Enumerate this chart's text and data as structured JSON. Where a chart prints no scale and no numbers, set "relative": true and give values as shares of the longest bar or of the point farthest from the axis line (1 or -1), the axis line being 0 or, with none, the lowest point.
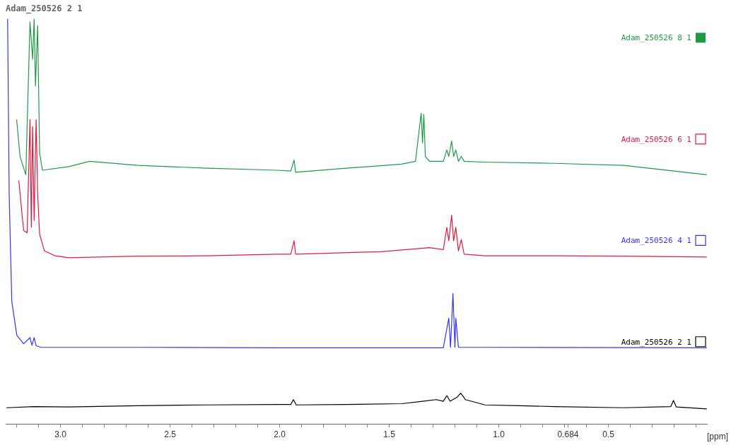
{
  "chart_data": {
    "type": "line",
    "title": "Adam_250526 2 1",
    "xlabel": "[ppm]",
    "relative": true,
    "grid": false,
    "legend": "right",
    "marker": "none",
    "line_style": "solid",
    "xlim": [
      3.25,
      0.05
    ],
    "xticks": [
      {
        "value": 3.2,
        "label": null
      },
      {
        "value": 3.1,
        "label": null
      },
      {
        "value": 3,
        "label": "3.0"
      },
      {
        "value": 2.9,
        "label": null
      },
      {
        "value": 2.8,
        "label": null
      },
      {
        "value": 2.7,
        "label": null
      },
      {
        "value": 2.6,
        "label": null
      },
      {
        "value": 2.5,
        "label": "2.5"
      },
      {
        "value": 2.4,
        "label": null
      },
      {
        "value": 2.3,
        "label": null
      },
      {
        "value": 2.2,
        "label": null
      },
      {
        "value": 2.1,
        "label": null
      },
      {
        "value": 2,
        "label": "2.0"
      },
      {
        "value": 1.9,
        "label": null
      },
      {
        "value": 1.8,
        "label": null
      },
      {
        "value": 1.7,
        "label": null
      },
      {
        "value": 1.6,
        "label": null
      },
      {
        "value": 1.5,
        "label": "1.5"
      },
      {
        "value": 1.4,
        "label": null
      },
      {
        "value": 1.3,
        "label": null
      },
      {
        "value": 1.2,
        "label": null
      },
      {
        "value": 1.1,
        "label": null
      },
      {
        "value": 1,
        "label": "1.0"
      },
      {
        "value": 0.9,
        "label": null
      },
      {
        "value": 0.8,
        "label": null
      },
      {
        "value": 0.7,
        "label": null
      },
      {
        "value": 0.684,
        "label": "0.684"
      },
      {
        "value": 0.6,
        "label": null
      },
      {
        "value": 0.5,
        "label": "0.5"
      },
      {
        "value": 0.4,
        "label": null
      },
      {
        "value": 0.3,
        "label": null
      },
      {
        "value": 0.2,
        "label": null
      },
      {
        "value": 0.1,
        "label": null
      }
    ],
    "series": [
      {
        "name": "Adam_250526 8 1",
        "color": "#1e9a45",
        "x": [
          3.2,
          3.184,
          3.158,
          3.139,
          3.127,
          3.12,
          3.114,
          3.104,
          3.095,
          3.082,
          2.962,
          2.867,
          2.646,
          2.329,
          2.013,
          1.949,
          1.934,
          1.927,
          1.696,
          1.443,
          1.38,
          1.354,
          1.348,
          1.342,
          1.335,
          1.316,
          1.253,
          1.237,
          1.228,
          1.215,
          1.206,
          1.196,
          1.184,
          1.171,
          1.158,
          1.063,
          0.747,
          0.43,
          0.051
        ],
        "values": [
          0.751,
          0.659,
          0.615,
          0.992,
          0.9,
          1.0,
          0.834,
          0.983,
          0.668,
          0.626,
          0.635,
          0.648,
          0.638,
          0.631,
          0.626,
          0.624,
          0.651,
          0.621,
          0.631,
          0.641,
          0.648,
          0.767,
          0.693,
          0.764,
          0.66,
          0.648,
          0.648,
          0.676,
          0.66,
          0.698,
          0.66,
          0.676,
          0.648,
          0.66,
          0.648,
          0.646,
          0.643,
          0.638,
          0.615
        ]
      },
      {
        "name": "Adam_250526 6 1",
        "color": "#e8173c",
        "x": [
          3.19,
          3.168,
          3.152,
          3.139,
          3.133,
          3.127,
          3.12,
          3.111,
          3.104,
          3.095,
          3.073,
          3.025,
          2.962,
          2.646,
          2.329,
          2.013,
          1.949,
          1.934,
          1.927,
          1.538,
          1.316,
          1.253,
          1.237,
          1.228,
          1.215,
          1.206,
          1.196,
          1.184,
          1.171,
          1.158,
          1.063,
          0.747,
          0.43,
          0.051
        ],
        "values": [
          0.601,
          0.477,
          0.472,
          0.751,
          0.485,
          0.734,
          0.502,
          0.751,
          0.568,
          0.468,
          0.427,
          0.415,
          0.41,
          0.414,
          0.415,
          0.419,
          0.419,
          0.452,
          0.419,
          0.425,
          0.435,
          0.43,
          0.485,
          0.452,
          0.515,
          0.452,
          0.485,
          0.427,
          0.455,
          0.419,
          0.415,
          0.415,
          0.414,
          0.412
        ]
      },
      {
        "name": "Adam_250526 4 1",
        "color": "#3333ff",
        "x": [
          3.241,
          3.234,
          3.222,
          3.199,
          3.168,
          3.139,
          3.13,
          3.12,
          3.111,
          3.089,
          2.646,
          2.013,
          1.253,
          1.228,
          1.22,
          1.209,
          1.2,
          1.196,
          1.184,
          1.063,
          0.051
        ],
        "values": [
          1.0,
          0.568,
          0.302,
          0.219,
          0.198,
          0.213,
          0.194,
          0.213,
          0.193,
          0.189,
          0.189,
          0.188,
          0.188,
          0.261,
          0.189,
          0.322,
          0.189,
          0.261,
          0.189,
          0.189,
          0.188
        ]
      },
      {
        "name": "Adam_250526 2 1",
        "color": "#000000",
        "x": [
          3.247,
          3.12,
          2.962,
          2.646,
          2.329,
          2.013,
          1.949,
          1.937,
          1.924,
          1.696,
          1.443,
          1.348,
          1.285,
          1.253,
          1.237,
          1.222,
          1.19,
          1.174,
          1.165,
          1.152,
          1.063,
          0.905,
          0.747,
          0.43,
          0.215,
          0.203,
          0.19,
          0.051
        ],
        "values": [
          0.04,
          0.043,
          0.042,
          0.045,
          0.047,
          0.048,
          0.048,
          0.06,
          0.047,
          0.048,
          0.05,
          0.056,
          0.06,
          0.056,
          0.07,
          0.056,
          0.066,
          0.076,
          0.07,
          0.06,
          0.047,
          0.045,
          0.043,
          0.04,
          0.043,
          0.058,
          0.042,
          0.037
        ]
      }
    ]
  }
}
